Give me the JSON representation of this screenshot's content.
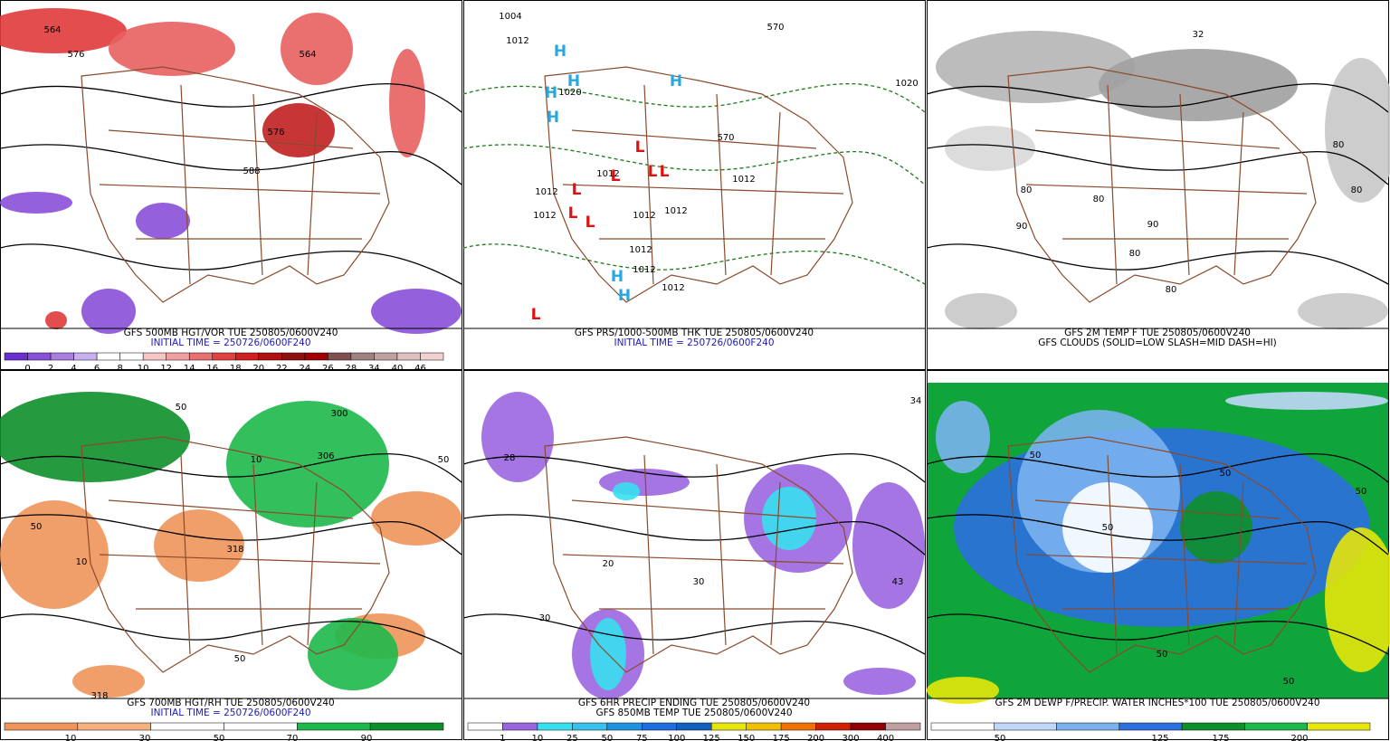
{
  "panels": [
    {
      "title": "GFS 500MB HGT/VOR TUE 250805/0600V240",
      "subtitle": "INITIAL TIME = 250726/0600F240",
      "colorbar": [
        "0",
        "2",
        "4",
        "6",
        "8",
        "10",
        "12",
        "14",
        "16",
        "18",
        "20",
        "22",
        "24",
        "26",
        "28",
        "34",
        "40",
        "46"
      ],
      "map_labels": [
        "564",
        "576",
        "564",
        "576",
        "588"
      ]
    },
    {
      "title": "GFS PRS/1000-500MB THK TUE 250805/0600V240",
      "subtitle": "INITIAL TIME = 250726/0600F240",
      "colorbar": [],
      "map_labels": [
        "1004",
        "1012",
        "1020",
        "H",
        "H",
        "H",
        "H",
        "H",
        "H",
        "H",
        "L",
        "L",
        "L",
        "L",
        "L",
        "L",
        "L",
        "L",
        "1012",
        "1012",
        "1012",
        "1012",
        "1012",
        "1012",
        "1012",
        "1012",
        "1012",
        "1020",
        "570",
        "570"
      ]
    },
    {
      "title": "GFS 2M TEMP F TUE 250805/0600V240",
      "subtitle": "GFS CLOUDS (SOLID=LOW SLASH=MID DASH=HI)",
      "colorbar": [],
      "map_labels": [
        "32",
        "80",
        "80",
        "80",
        "80",
        "80",
        "80",
        "90",
        "90"
      ]
    },
    {
      "title": "GFS 700MB HGT/RH TUE 250805/0600V240",
      "subtitle": "INITIAL TIME = 250726/0600F240",
      "colorbar": [
        "10",
        "30",
        "50",
        "70",
        "90"
      ],
      "map_labels": [
        "300",
        "306",
        "10",
        "10",
        "50",
        "50",
        "50",
        "318",
        "318",
        "50"
      ]
    },
    {
      "title": "GFS 6HR PRECIP ENDING TUE 250805/0600V240",
      "subtitle": "GFS 850MB TEMP TUE 250805/0600V240",
      "colorbar": [
        "1",
        "10",
        "25",
        "50",
        "75",
        "100",
        "125",
        "150",
        "175",
        "200",
        "300",
        "400"
      ],
      "map_labels": [
        "28",
        "30",
        "20",
        "30",
        "34",
        "43"
      ]
    },
    {
      "title": "GFS 2M DEWP F/PRECIP. WATER INCHES*100 TUE 250805/0600V240",
      "subtitle": "",
      "colorbar": [
        "50",
        "125",
        "175",
        "200"
      ],
      "map_labels": [
        "50",
        "50",
        "50",
        "50",
        "50",
        "50"
      ]
    }
  ]
}
